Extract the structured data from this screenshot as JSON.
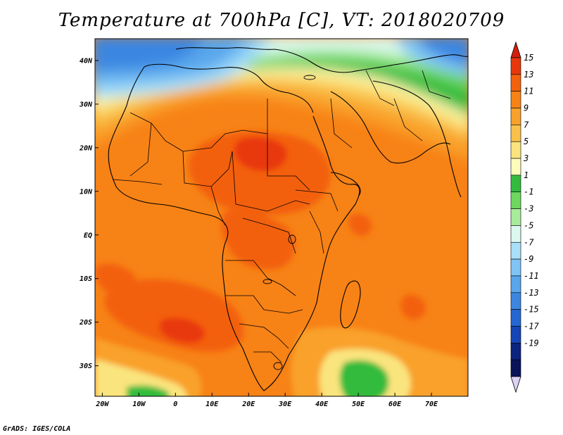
{
  "title": "Temperature at 700hPa [C], VT: 2018020709",
  "credit": "GrADS: IGES/COLA",
  "map": {
    "type": "filled-contour",
    "lon_range": [
      -22,
      80
    ],
    "lat_range": [
      -37,
      45
    ],
    "lat_ticks": [
      {
        "value": 40,
        "label": "40N"
      },
      {
        "value": 30,
        "label": "30N"
      },
      {
        "value": 20,
        "label": "20N"
      },
      {
        "value": 10,
        "label": "10N"
      },
      {
        "value": 0,
        "label": "EQ"
      },
      {
        "value": -10,
        "label": "10S"
      },
      {
        "value": -20,
        "label": "20S"
      },
      {
        "value": -30,
        "label": "30S"
      }
    ],
    "lon_ticks": [
      {
        "value": -20,
        "label": "20W"
      },
      {
        "value": -10,
        "label": "10W"
      },
      {
        "value": 0,
        "label": "0"
      },
      {
        "value": 10,
        "label": "10E"
      },
      {
        "value": 20,
        "label": "20E"
      },
      {
        "value": 30,
        "label": "30E"
      },
      {
        "value": 40,
        "label": "40E"
      },
      {
        "value": 50,
        "label": "50E"
      },
      {
        "value": 60,
        "label": "60E"
      },
      {
        "value": 70,
        "label": "70E"
      }
    ]
  },
  "colorbar": {
    "labels": [
      "15",
      "13",
      "11",
      "9",
      "7",
      "5",
      "3",
      "1",
      "-1",
      "-3",
      "-5",
      "-7",
      "-9",
      "-11",
      "-13",
      "-15",
      "-17",
      "-19"
    ],
    "colors": [
      "#e8380b",
      "#f3610d",
      "#f78216",
      "#f9a12b",
      "#f9c14a",
      "#fae47d",
      "#fdfcba",
      "#33bb3e",
      "#6dd75e",
      "#a8ec9b",
      "#dcf8ef",
      "#a9e0f8",
      "#7fc4f5",
      "#58a6ec",
      "#3b86e1",
      "#2567d2",
      "#1545b6",
      "#0b2480",
      "#08135a"
    ],
    "top_arrow_color": "#d41e0a",
    "bottom_arrow_color": "#dcd2f8"
  }
}
